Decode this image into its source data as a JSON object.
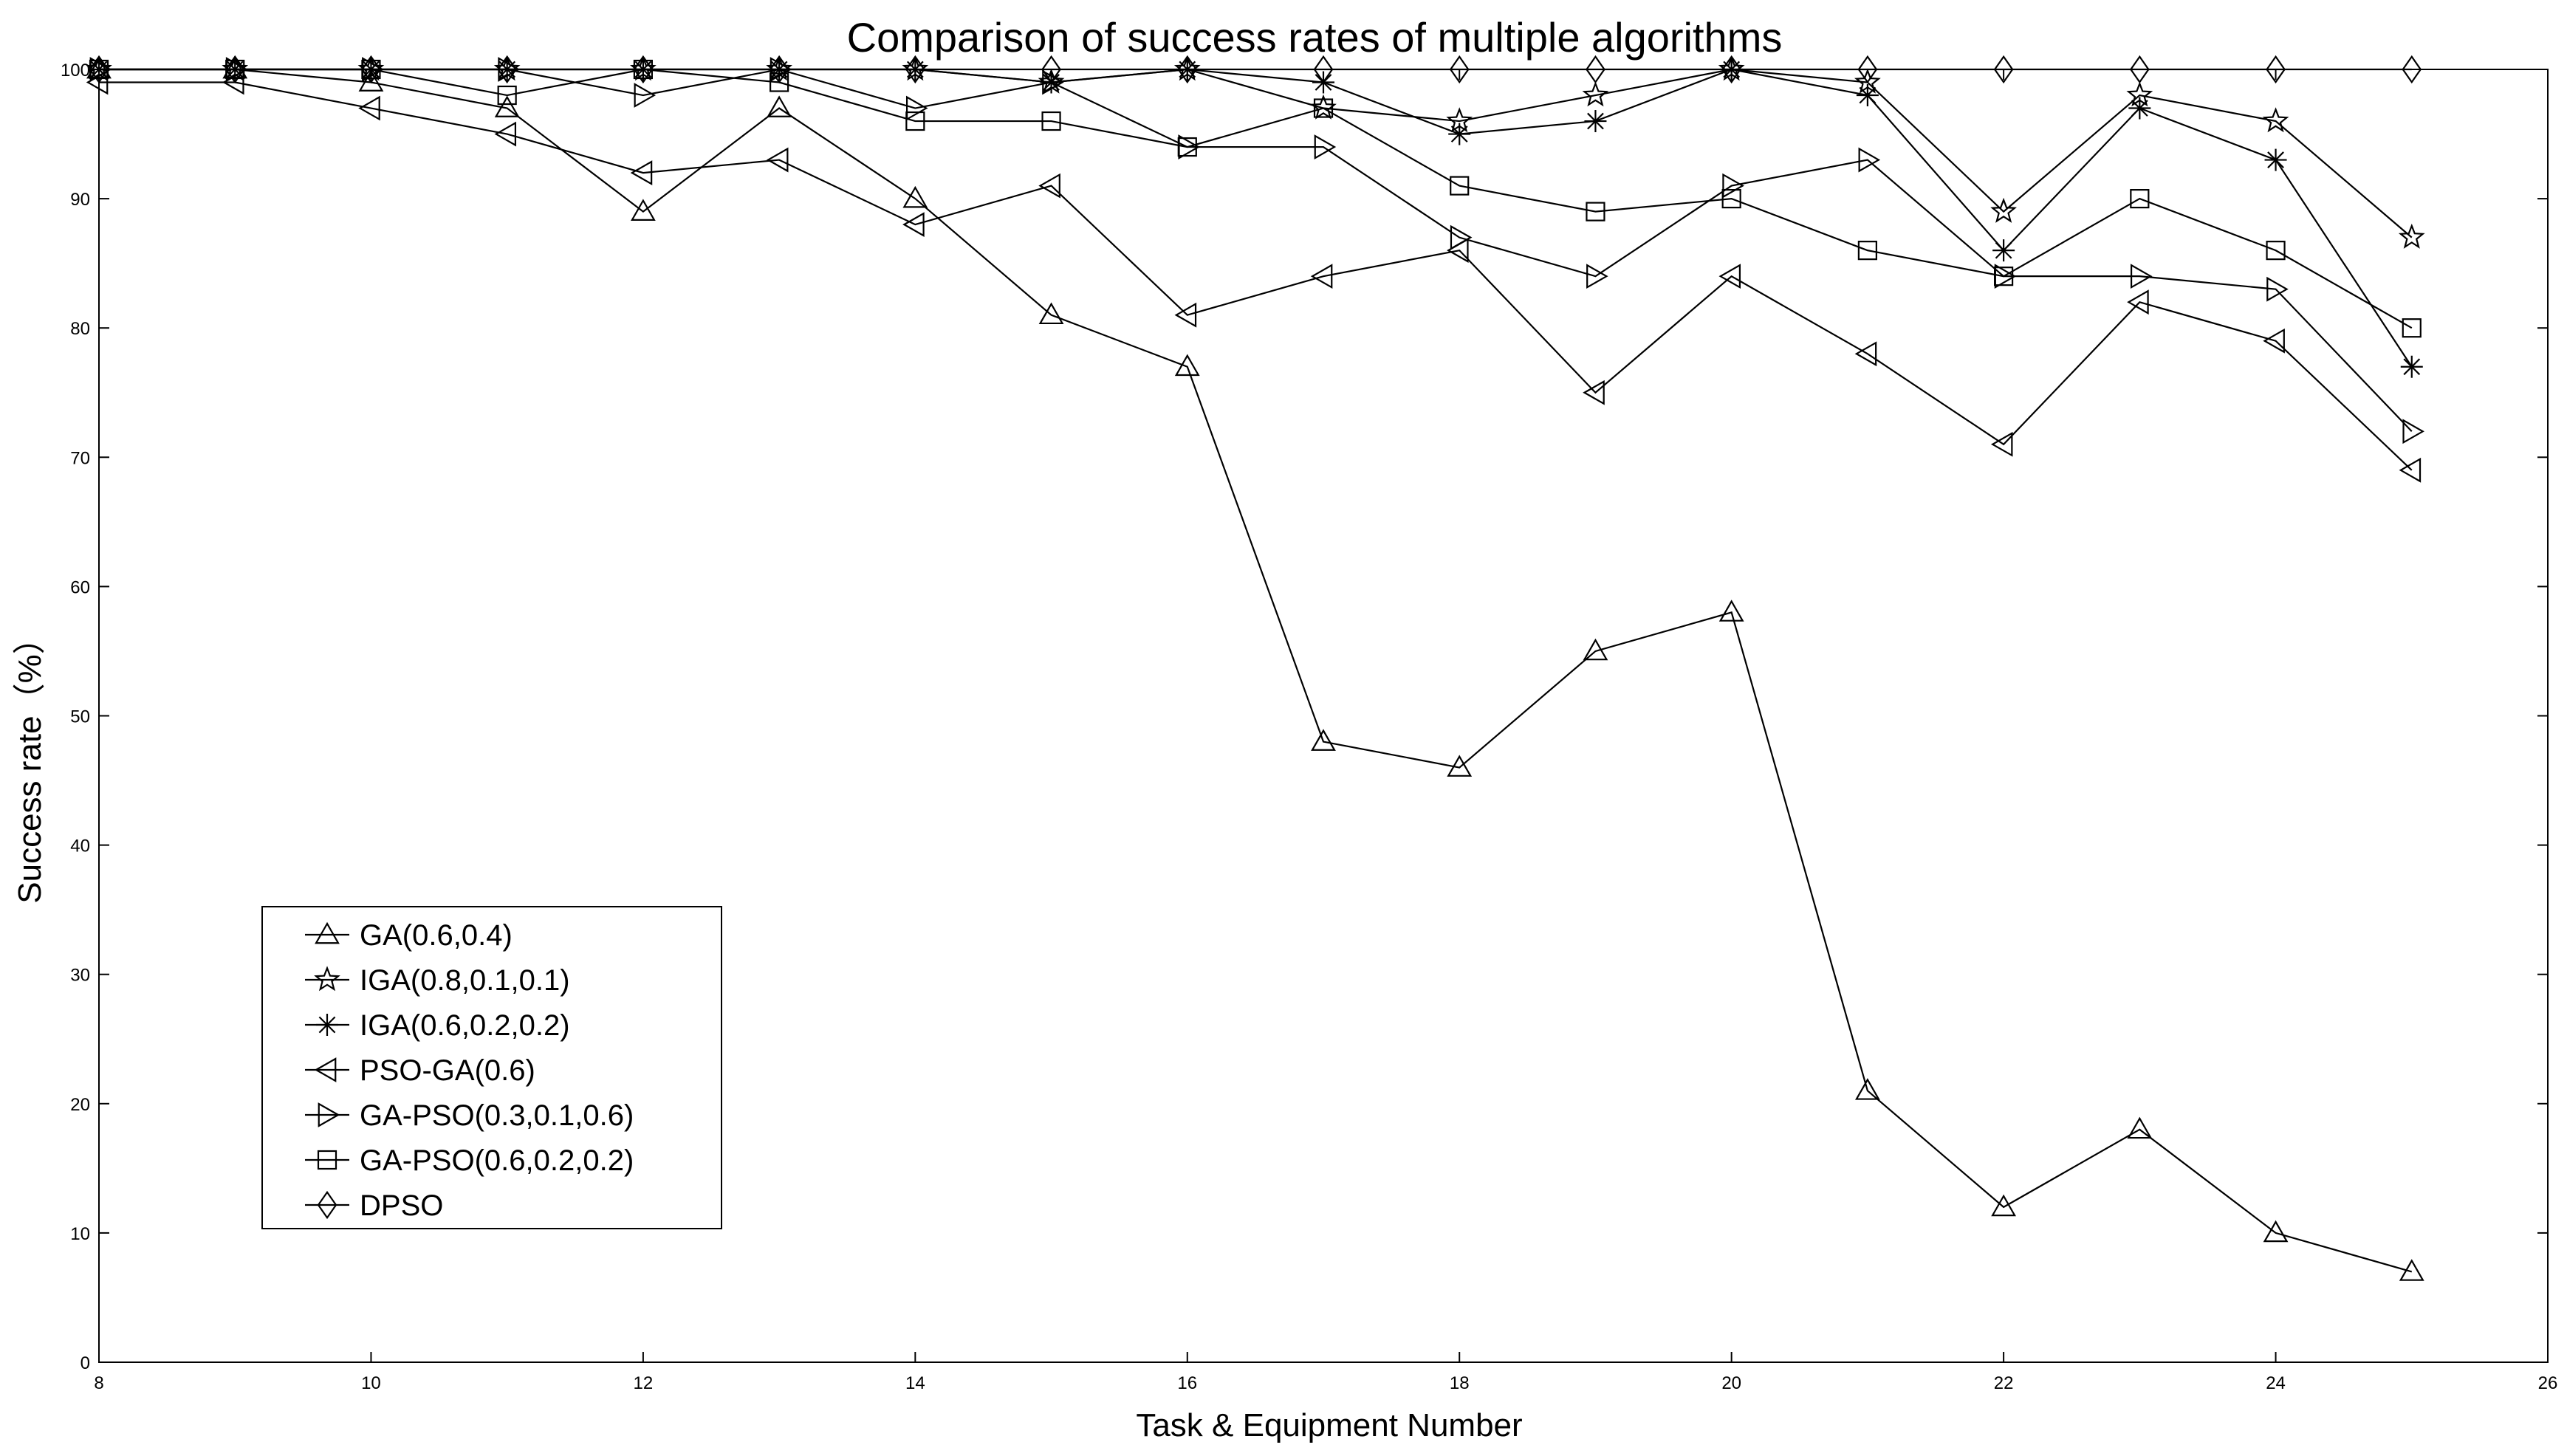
{
  "chart_data": {
    "type": "line",
    "title": "Comparison of success rates of multiple algorithms",
    "xlabel": "Task & Equipment Number",
    "ylabel": "Success rate（%）",
    "xlim": [
      8,
      26
    ],
    "ylim": [
      0,
      100
    ],
    "xticks": [
      8,
      10,
      12,
      14,
      16,
      18,
      20,
      22,
      24,
      26
    ],
    "yticks": [
      0,
      10,
      20,
      30,
      40,
      50,
      60,
      70,
      80,
      90,
      100
    ],
    "grid": false,
    "legend_position": "bottom-left",
    "x": [
      8,
      9,
      10,
      11,
      12,
      13,
      14,
      15,
      16,
      17,
      18,
      19,
      20,
      21,
      22,
      23,
      24,
      25
    ],
    "series": [
      {
        "name": "GA(0.6,0.4)",
        "marker": "triangle-up",
        "values": [
          100,
          100,
          99,
          97,
          89,
          97,
          90,
          81,
          77,
          48,
          46,
          55,
          58,
          21,
          12,
          18,
          10,
          7
        ]
      },
      {
        "name": "IGA(0.8,0.1,0.1)",
        "marker": "star",
        "values": [
          100,
          100,
          100,
          100,
          100,
          100,
          100,
          99,
          100,
          97,
          96,
          98,
          100,
          99,
          89,
          98,
          96,
          87
        ]
      },
      {
        "name": "IGA(0.6,0.2,0.2)",
        "marker": "asterisk",
        "values": [
          100,
          100,
          100,
          100,
          100,
          100,
          100,
          99,
          100,
          99,
          95,
          96,
          100,
          98,
          86,
          97,
          93,
          77
        ]
      },
      {
        "name": "PSO-GA(0.6)",
        "marker": "triangle-left",
        "values": [
          99,
          99,
          97,
          95,
          92,
          93,
          88,
          91,
          81,
          84,
          86,
          75,
          84,
          78,
          71,
          82,
          79,
          69
        ]
      },
      {
        "name": "GA-PSO(0.3,0.1,0.6)",
        "marker": "triangle-right",
        "values": [
          100,
          100,
          100,
          100,
          98,
          100,
          97,
          99,
          94,
          94,
          87,
          84,
          91,
          93,
          84,
          84,
          83,
          72
        ]
      },
      {
        "name": "GA-PSO(0.6,0.2,0.2)",
        "marker": "square",
        "values": [
          100,
          100,
          100,
          98,
          100,
          99,
          96,
          96,
          94,
          97,
          91,
          89,
          90,
          86,
          84,
          90,
          86,
          80
        ]
      },
      {
        "name": "DPSO",
        "marker": "diamond",
        "values": [
          100,
          100,
          100,
          100,
          100,
          100,
          100,
          100,
          100,
          100,
          100,
          100,
          100,
          100,
          100,
          100,
          100,
          100
        ]
      }
    ]
  }
}
